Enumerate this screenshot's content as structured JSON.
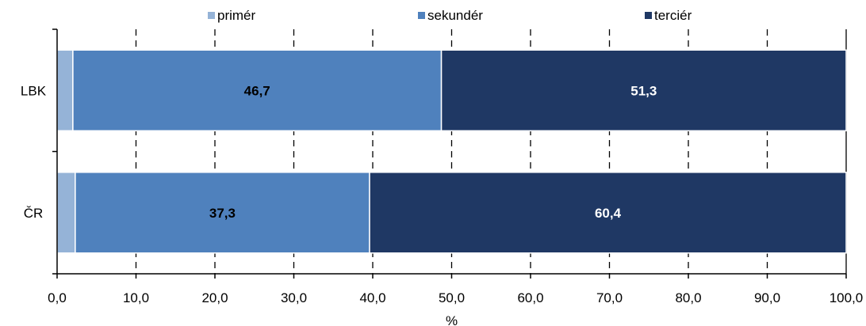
{
  "chart_data": {
    "type": "bar",
    "orientation": "horizontal",
    "stacked": true,
    "categories": [
      "LBK",
      "ČR"
    ],
    "series": [
      {
        "name": "primér",
        "values": [
          2.0,
          2.3
        ],
        "color": "#95b3d7",
        "show_label": false,
        "label_color": "#000000"
      },
      {
        "name": "sekundér",
        "values": [
          46.7,
          37.3
        ],
        "color": "#4f81bd",
        "show_label": true,
        "label_color": "#000000"
      },
      {
        "name": "terciér",
        "values": [
          51.3,
          60.4
        ],
        "color": "#1f3864",
        "show_label": true,
        "label_color": "#ffffff"
      }
    ],
    "data_labels": [
      [
        "",
        "46,7",
        "51,3"
      ],
      [
        "",
        "37,3",
        "60,4"
      ]
    ],
    "xlabel": "%",
    "ylabel": "",
    "xlim": [
      0,
      100
    ],
    "xticks": [
      0,
      10,
      20,
      30,
      40,
      50,
      60,
      70,
      80,
      90,
      100
    ],
    "xtick_labels": [
      "0,0",
      "10,0",
      "20,0",
      "30,0",
      "40,0",
      "50,0",
      "60,0",
      "70,0",
      "80,0",
      "90,0",
      "100,0"
    ],
    "grid": "vertical dashed",
    "legend_position": "top"
  }
}
